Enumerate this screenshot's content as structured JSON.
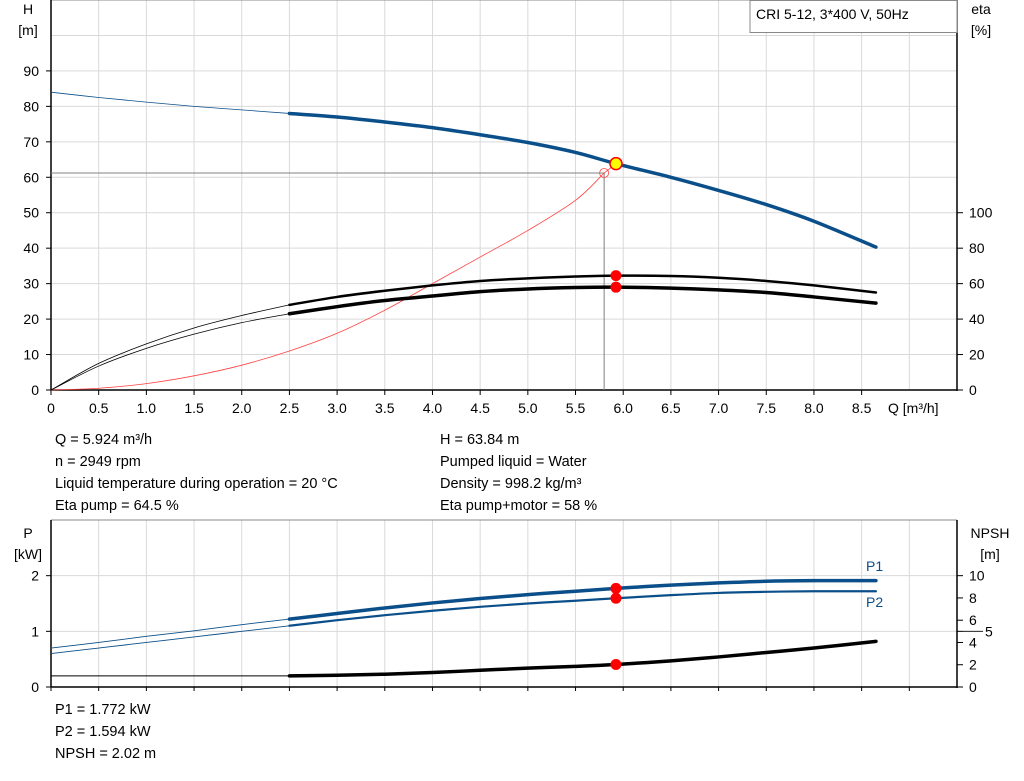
{
  "chart_data": [
    {
      "type": "line",
      "title": "CRI 5-12, 3*400 V, 50Hz",
      "xlabel": "Q [m³/h]",
      "ylabel_left": [
        "H",
        "[m]"
      ],
      "ylabel_right": [
        "eta",
        "[%]"
      ],
      "xlim": [
        0,
        9.5
      ],
      "ylim_left": [
        0,
        110
      ],
      "ylim_right": [
        0,
        220
      ],
      "xticks": [
        "0",
        "0.5",
        "1.0",
        "1.5",
        "2.0",
        "2.5",
        "3.0",
        "3.5",
        "4.0",
        "4.5",
        "5.0",
        "5.5",
        "6.0",
        "6.5",
        "7.0",
        "7.5",
        "8.0",
        "8.5"
      ],
      "yticks_left": [
        0,
        10,
        20,
        30,
        40,
        50,
        60,
        70,
        80,
        90
      ],
      "yticks_right": [
        0,
        20,
        40,
        60,
        80,
        100
      ],
      "grid": true,
      "colors": {
        "head": "#0b4f8a",
        "eta": "#000000",
        "system": "#ff4040",
        "operating_point": "#ffff00",
        "marker": "#ff0000",
        "guide": "#808080"
      },
      "series": [
        {
          "axis": "left",
          "key": "H",
          "x": [
            0,
            0.5,
            1,
            1.5,
            2,
            2.5,
            3,
            3.5,
            4,
            4.5,
            5,
            5.5,
            5.924,
            6.5,
            7,
            7.5,
            8,
            8.65
          ],
          "y": [
            84,
            82.5,
            81.2,
            80,
            79,
            78,
            77,
            75.6,
            74,
            72,
            69.8,
            67,
            63.84,
            60,
            56.3,
            52.3,
            47.6,
            40.3
          ]
        },
        {
          "axis": "right",
          "key": "eta_pump",
          "x": [
            0,
            0.5,
            1,
            1.5,
            2,
            2.5,
            3,
            3.5,
            4,
            4.5,
            5,
            5.5,
            5.924,
            6.5,
            7,
            7.5,
            8,
            8.65
          ],
          "y": [
            0,
            15,
            26,
            35,
            42,
            48,
            52.5,
            56,
            59,
            61.5,
            63,
            64,
            64.5,
            64.3,
            63.3,
            61.5,
            59,
            55
          ]
        },
        {
          "axis": "right",
          "key": "eta_pump_motor",
          "x": [
            0,
            0.5,
            1,
            1.5,
            2,
            2.5,
            3,
            3.5,
            4,
            4.5,
            5,
            5.5,
            5.924,
            6.5,
            7,
            7.5,
            8,
            8.65
          ],
          "y": [
            0,
            13.5,
            23.5,
            31.5,
            38,
            43,
            47,
            50.5,
            53,
            55.5,
            57,
            57.8,
            58,
            57.5,
            56.5,
            55,
            52.5,
            49
          ]
        },
        {
          "axis": "left",
          "key": "system_curve",
          "x": [
            0,
            0.5,
            1,
            1.5,
            2,
            2.5,
            3,
            3.5,
            4,
            4.5,
            5,
            5.5,
            5.8
          ],
          "y": [
            0,
            0.5,
            1.8,
            4,
            7,
            11,
            16,
            22.5,
            30,
            37.5,
            45,
            53.5,
            61.2
          ]
        }
      ],
      "guide_point": {
        "x": 5.8,
        "y": 61.2
      },
      "operating_point": {
        "Q": 5.924,
        "H": 63.84,
        "eta_pump": 64.5,
        "eta_pump_motor": 58
      },
      "thin_until_x": 2.5
    },
    {
      "type": "line",
      "ylabel_left": [
        "P",
        "[kW]"
      ],
      "ylabel_right": [
        "NPSH",
        "[m]"
      ],
      "xlim": [
        0,
        9.5
      ],
      "ylim_left": [
        0,
        3
      ],
      "ylim_right": [
        0,
        15
      ],
      "yticks_left": [
        0,
        1,
        2
      ],
      "yticks_right": [
        0,
        2,
        4,
        5,
        6,
        8,
        10
      ],
      "grid": true,
      "series": [
        {
          "name": "P1",
          "axis": "left",
          "x": [
            0,
            0.5,
            1,
            1.5,
            2,
            2.5,
            3,
            3.5,
            4,
            4.5,
            5,
            5.5,
            5.924,
            6.5,
            7,
            7.5,
            8,
            8.65
          ],
          "y": [
            0.7,
            0.8,
            0.91,
            1.01,
            1.12,
            1.22,
            1.32,
            1.42,
            1.51,
            1.59,
            1.66,
            1.72,
            1.772,
            1.83,
            1.87,
            1.9,
            1.91,
            1.91
          ]
        },
        {
          "name": "P2",
          "axis": "left",
          "x": [
            0,
            0.5,
            1,
            1.5,
            2,
            2.5,
            3,
            3.5,
            4,
            4.5,
            5,
            5.5,
            5.924,
            6.5,
            7,
            7.5,
            8,
            8.65
          ],
          "y": [
            0.6,
            0.7,
            0.8,
            0.9,
            1.0,
            1.1,
            1.2,
            1.29,
            1.37,
            1.44,
            1.5,
            1.55,
            1.594,
            1.65,
            1.69,
            1.71,
            1.72,
            1.72
          ]
        },
        {
          "axis": "right",
          "key": "NPSH",
          "x": [
            0,
            2.5,
            3,
            3.5,
            4,
            4.5,
            5,
            5.5,
            5.924,
            6.5,
            7,
            7.5,
            8,
            8.65
          ],
          "y": [
            1.0,
            1.0,
            1.05,
            1.15,
            1.3,
            1.5,
            1.7,
            1.85,
            2.02,
            2.35,
            2.7,
            3.1,
            3.5,
            4.1
          ]
        }
      ],
      "operating_point": {
        "Q": 5.924,
        "P1": 1.772,
        "P2": 1.594,
        "NPSH": 2.02
      }
    }
  ],
  "info": {
    "left": [
      "Q = 5.924 m³/h",
      "n = 2949 rpm",
      "Liquid temperature during operation = 20 °C",
      "Eta pump = 64.5 %"
    ],
    "right": [
      "H = 63.84 m",
      "Pumped liquid = Water",
      "Density = 998.2 kg/m³",
      "Eta pump+motor = 58 %"
    ],
    "bottom": [
      "P1 = 1.772 kW",
      "P2 = 1.594 kW",
      "NPSH = 2.02 m"
    ]
  }
}
